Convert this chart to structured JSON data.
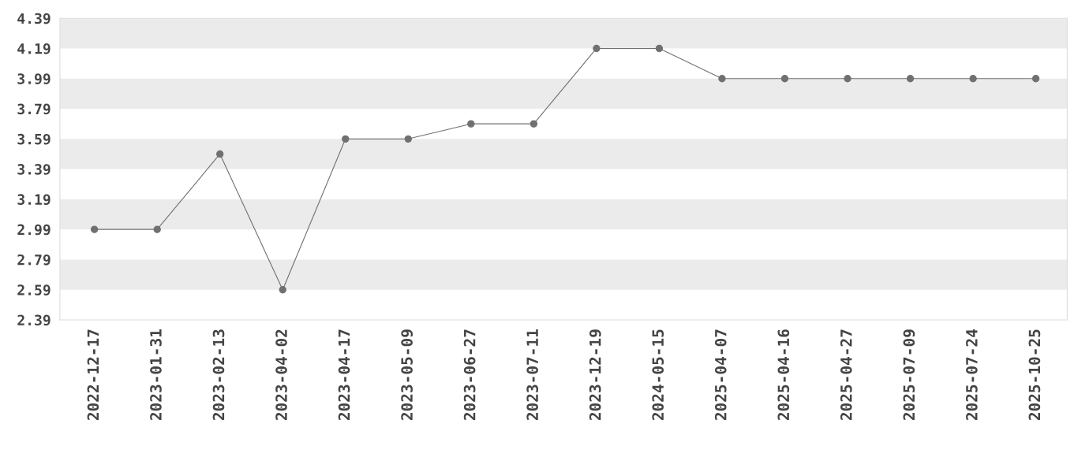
{
  "chart_data": {
    "type": "line",
    "categories": [
      "2022-12-17",
      "2023-01-31",
      "2023-02-13",
      "2023-04-02",
      "2023-04-17",
      "2023-05-09",
      "2023-06-27",
      "2023-07-11",
      "2023-12-19",
      "2024-05-15",
      "2025-04-07",
      "2025-04-16",
      "2025-04-27",
      "2025-07-09",
      "2025-07-24",
      "2025-10-25"
    ],
    "series": [
      {
        "color": "#707070",
        "values": [
          2.99,
          2.99,
          3.49,
          2.59,
          3.59,
          3.59,
          3.69,
          3.69,
          4.19,
          4.19,
          3.99,
          3.99,
          3.99,
          3.99,
          3.99,
          3.99
        ]
      }
    ],
    "ylim": [
      2.39,
      4.39
    ],
    "yticks": [
      {
        "value": 2.39,
        "label": "2.39"
      },
      {
        "value": 2.59,
        "label": "2.59"
      },
      {
        "value": 2.79,
        "label": "2.79"
      },
      {
        "value": 2.99,
        "label": "2.99"
      },
      {
        "value": 3.19,
        "label": "3.19"
      },
      {
        "value": 3.39,
        "label": "3.39"
      },
      {
        "value": 3.59,
        "label": "3.59"
      },
      {
        "value": 3.79,
        "label": "3.79"
      },
      {
        "value": 3.99,
        "label": "3.99"
      },
      {
        "value": 4.19,
        "label": "4.19"
      },
      {
        "value": 4.39,
        "label": "4.39"
      }
    ],
    "bands": [
      {
        "axis": "y",
        "from": 2.59,
        "to": 2.79,
        "color": "#ebebeb"
      },
      {
        "axis": "y",
        "from": 2.99,
        "to": 3.19,
        "color": "#ebebeb"
      },
      {
        "axis": "y",
        "from": 3.39,
        "to": 3.59,
        "color": "#ebebeb"
      },
      {
        "axis": "y",
        "from": 3.79,
        "to": 3.99,
        "color": "#ebebeb"
      },
      {
        "axis": "y",
        "from": 4.19,
        "to": 4.39,
        "color": "#ebebeb"
      }
    ],
    "marker": "circle",
    "line_style": "solid"
  }
}
